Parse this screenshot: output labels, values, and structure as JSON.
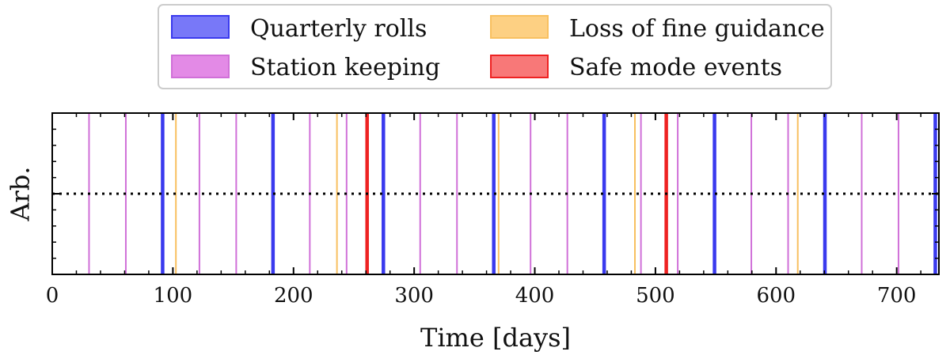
{
  "chart_data": {
    "type": "event-timeline",
    "xlabel": "Time [days]",
    "ylabel": "Arb.",
    "xlim": [
      0,
      735
    ],
    "ylim": [
      0,
      1
    ],
    "xticks": [
      0,
      100,
      200,
      300,
      400,
      500,
      600,
      700
    ],
    "reference_line": {
      "y": 0.5,
      "style": "dotted",
      "color": "#000000"
    },
    "legend": {
      "placement": "upper-center",
      "entries": [
        "Quarterly rolls",
        "Station keeping",
        "Loss of fine guidance",
        "Safe mode events"
      ]
    },
    "series": [
      {
        "name": "Quarterly rolls",
        "color": "#3a3aee",
        "weight": "thick",
        "x": [
          91.5,
          183,
          274.5,
          366,
          457.5,
          549,
          640.5,
          732
        ]
      },
      {
        "name": "Station keeping",
        "color": "#d070d8",
        "weight": "thin",
        "x": [
          30.5,
          61,
          122,
          152.5,
          213.5,
          244,
          305,
          335.5,
          396.5,
          427,
          488,
          518.5,
          579.5,
          610,
          671,
          701.5
        ]
      },
      {
        "name": "Loss of fine guidance",
        "color": "#f8c060",
        "weight": "thin",
        "x": [
          102.5,
          236,
          370,
          483,
          618
        ]
      },
      {
        "name": "Safe mode events",
        "color": "#ee2222",
        "weight": "thick",
        "x": [
          261,
          509
        ]
      }
    ]
  }
}
